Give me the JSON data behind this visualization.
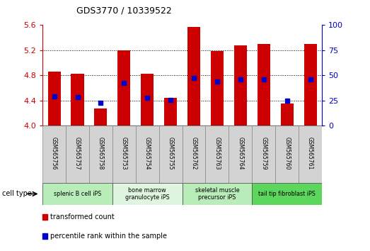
{
  "title": "GDS3770 / 10339522",
  "samples": [
    "GSM565756",
    "GSM565757",
    "GSM565758",
    "GSM565753",
    "GSM565754",
    "GSM565755",
    "GSM565762",
    "GSM565763",
    "GSM565764",
    "GSM565759",
    "GSM565760",
    "GSM565761"
  ],
  "red_values": [
    4.86,
    4.83,
    4.27,
    5.2,
    4.83,
    4.44,
    5.57,
    5.19,
    5.28,
    5.3,
    4.35,
    5.3
  ],
  "blue_values_raw": [
    4.46,
    4.45,
    4.36,
    4.68,
    4.44,
    4.41,
    4.76,
    4.7,
    4.73,
    4.73,
    4.4,
    4.73
  ],
  "ylim_left": [
    4.0,
    5.6
  ],
  "ylim_right": [
    0,
    100
  ],
  "yticks_left": [
    4.0,
    4.4,
    4.8,
    5.2,
    5.6
  ],
  "yticks_right": [
    0,
    25,
    50,
    75,
    100
  ],
  "cell_types": [
    {
      "label": "splenic B cell iPS",
      "start": 0,
      "end": 3,
      "color": "#b8ecb8"
    },
    {
      "label": "bone marrow\ngranulocyte iPS",
      "start": 3,
      "end": 6,
      "color": "#dff5df"
    },
    {
      "label": "skeletal muscle\nprecursor iPS",
      "start": 6,
      "end": 9,
      "color": "#b8ecb8"
    },
    {
      "label": "tail tip fibroblast iPS",
      "start": 9,
      "end": 12,
      "color": "#5cd65c"
    }
  ],
  "bar_color": "#cc0000",
  "dot_color": "#0000cc",
  "bar_bottom": 4.0,
  "bar_width": 0.55,
  "legend_red": "transformed count",
  "legend_blue": "percentile rank within the sample",
  "cell_type_label": "cell type",
  "axis_left_color": "#cc0000",
  "axis_right_color": "#0000cc",
  "sample_box_color": "#d3d3d3",
  "sample_box_edge": "#888888"
}
